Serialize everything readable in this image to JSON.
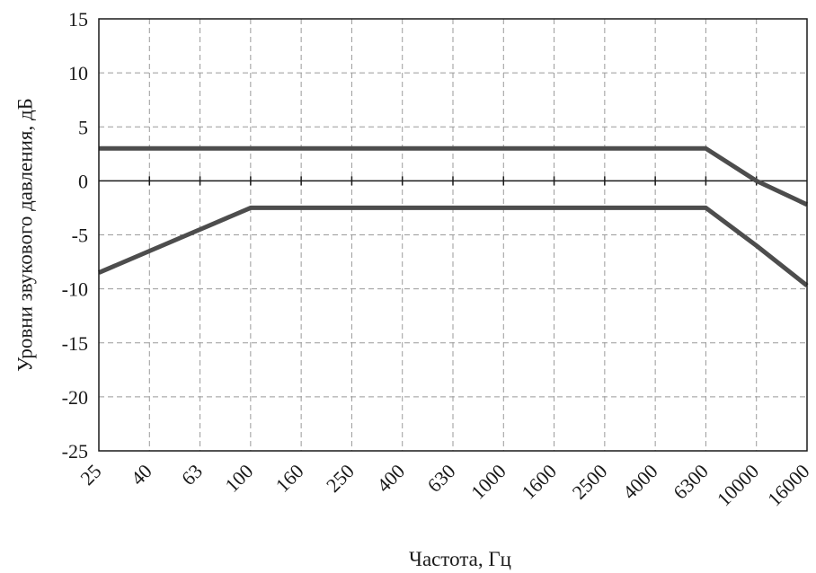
{
  "chart_data": {
    "type": "line",
    "title": "",
    "xlabel": "Частота, Гц",
    "ylabel": "Уровни звукового давления, дБ",
    "categories": [
      "25",
      "40",
      "63",
      "100",
      "160",
      "250",
      "400",
      "630",
      "1000",
      "1600",
      "2500",
      "4000",
      "6300",
      "10000",
      "16000"
    ],
    "yticks": [
      "15",
      "10",
      "5",
      "0",
      "-5",
      "-10",
      "-15",
      "-20",
      "-25"
    ],
    "ylim": [
      -25,
      15
    ],
    "grid": true,
    "legend": "none",
    "series": [
      {
        "color": "#4d4d4d",
        "values": [
          3,
          3,
          3,
          3,
          3,
          3,
          3,
          3,
          3,
          3,
          3,
          3,
          3,
          0,
          -2.2
        ]
      },
      {
        "color": "#4d4d4d",
        "values": [
          -8.5,
          -6.5,
          -4.5,
          -2.5,
          -2.5,
          -2.5,
          -2.5,
          -2.5,
          -2.5,
          -2.5,
          -2.5,
          -2.5,
          -2.5,
          -6,
          -9.7
        ]
      }
    ]
  }
}
